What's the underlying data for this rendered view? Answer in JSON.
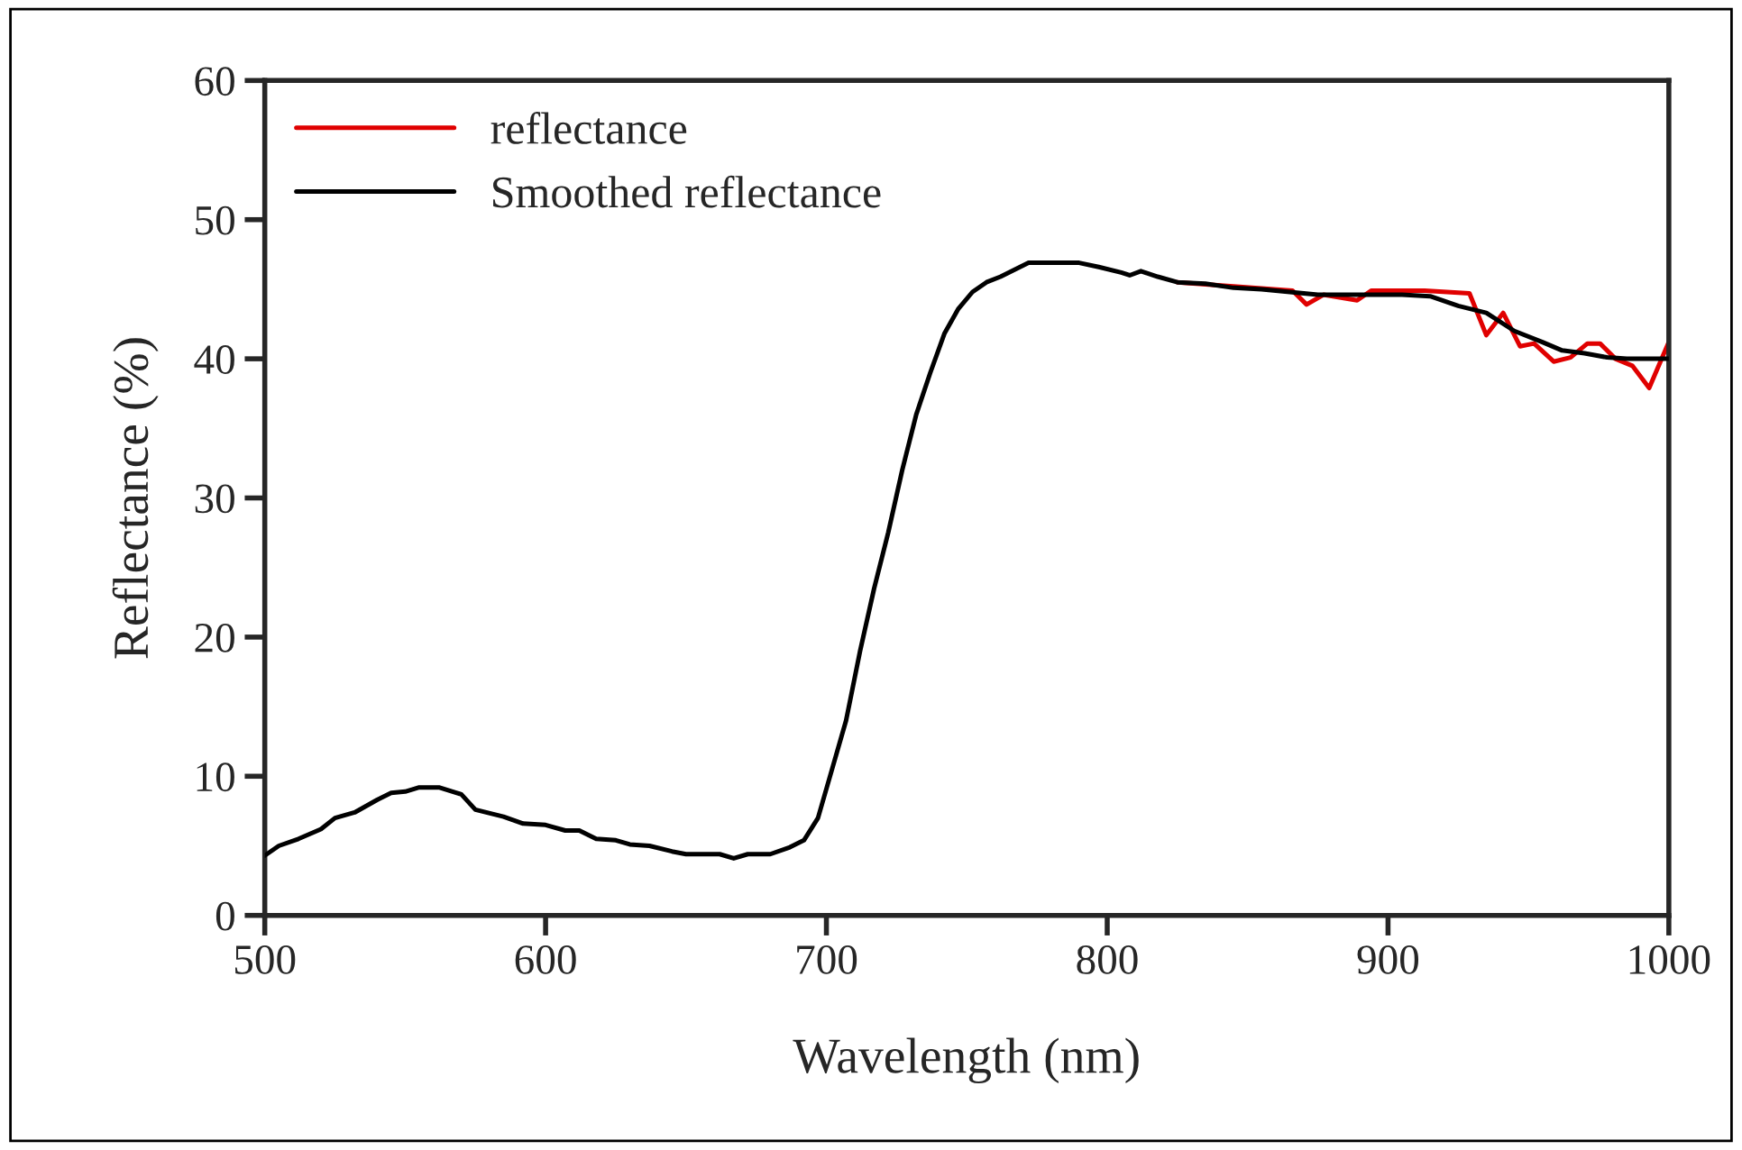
{
  "chart_data": {
    "type": "line",
    "xlabel": "Wavelength (nm)",
    "ylabel": "Reflectance (%)",
    "xlim": [
      500,
      1000
    ],
    "ylim": [
      0,
      60
    ],
    "xticks": [
      500,
      600,
      700,
      800,
      900,
      1000
    ],
    "yticks": [
      0,
      10,
      20,
      30,
      40,
      50,
      60
    ],
    "grid": false,
    "legend": "top left",
    "line_style": "solid",
    "marker": "none",
    "series": [
      {
        "name": "reflectance",
        "color": "#e00000",
        "x": [
          825,
          866,
          871,
          877,
          889,
          894,
          913,
          929,
          935,
          941,
          947,
          952,
          959,
          965,
          971,
          975.5,
          981,
          987,
          993,
          1000
        ],
        "values": [
          45.5,
          44.9,
          43.9,
          44.6,
          44.2,
          44.9,
          44.9,
          44.7,
          41.7,
          43.3,
          40.9,
          41.1,
          39.8,
          40.1,
          41.1,
          41.1,
          40.0,
          39.5,
          37.9,
          41.2
        ]
      },
      {
        "name": "Smoothed reflectance",
        "color": "#000000",
        "x": [
          500,
          505,
          512,
          520,
          525,
          532,
          540,
          545,
          550,
          555,
          562,
          570,
          575,
          585,
          592,
          600,
          607,
          612,
          618,
          625,
          630,
          637,
          645,
          650,
          655,
          662,
          667,
          672,
          680,
          687,
          692,
          697,
          702,
          707,
          712,
          717,
          722,
          727,
          732,
          737,
          742,
          747,
          752,
          757,
          762,
          767,
          772,
          780,
          790,
          797,
          805,
          808,
          812,
          818,
          825,
          835,
          845,
          855,
          865,
          875,
          885,
          895,
          905,
          915,
          925,
          935,
          945,
          955,
          962,
          970,
          978,
          985,
          1000
        ],
        "values": [
          4.3,
          5.0,
          5.5,
          6.2,
          7.0,
          7.4,
          8.3,
          8.8,
          8.9,
          9.2,
          9.2,
          8.7,
          7.6,
          7.1,
          6.6,
          6.5,
          6.1,
          6.1,
          5.5,
          5.4,
          5.1,
          5.0,
          4.6,
          4.4,
          4.4,
          4.4,
          4.1,
          4.4,
          4.4,
          4.9,
          5.4,
          7.0,
          10.5,
          14,
          19,
          23.5,
          27.5,
          32,
          36,
          39,
          41.8,
          43.6,
          44.8,
          45.5,
          45.9,
          46.4,
          46.9,
          46.9,
          46.9,
          46.6,
          46.2,
          46.0,
          46.3,
          45.9,
          45.5,
          45.4,
          45.1,
          45.0,
          44.8,
          44.6,
          44.6,
          44.6,
          44.6,
          44.5,
          43.8,
          43.3,
          42.0,
          41.2,
          40.6,
          40.4,
          40.1,
          40.0,
          40.0
        ]
      }
    ]
  }
}
